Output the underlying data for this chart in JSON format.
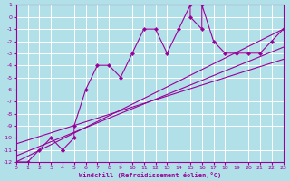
{
  "xlabel": "Windchill (Refroidissement éolien,°C)",
  "bg_color": "#b2e0e8",
  "grid_color": "#ffffff",
  "line_color": "#990099",
  "xlim": [
    0,
    23
  ],
  "ylim": [
    -12,
    1
  ],
  "xticks": [
    0,
    1,
    2,
    3,
    4,
    5,
    6,
    7,
    8,
    9,
    10,
    11,
    12,
    13,
    14,
    15,
    16,
    17,
    18,
    19,
    20,
    21,
    22,
    23
  ],
  "yticks": [
    1,
    0,
    -1,
    -2,
    -3,
    -4,
    -5,
    -6,
    -7,
    -8,
    -9,
    -10,
    -11,
    -12
  ],
  "curve_x": [
    0,
    1,
    2,
    3,
    4,
    4,
    5,
    5,
    6,
    7,
    8,
    9,
    10,
    11,
    12,
    13,
    14,
    15,
    15,
    16,
    16,
    17,
    18,
    19,
    20,
    21,
    22,
    23
  ],
  "curve_y": [
    -12,
    -12,
    -11,
    -10,
    -11,
    -11,
    -10,
    -9,
    -6,
    -4,
    -4,
    -5,
    -3,
    -1,
    -1,
    -3,
    -1,
    1,
    0,
    -1,
    1,
    -2,
    -3,
    -3,
    -3,
    -3,
    -2,
    -1
  ],
  "line1_x": [
    0,
    23
  ],
  "line1_y": [
    -12,
    -1
  ],
  "line2_x": [
    0,
    23
  ],
  "line2_y": [
    -11.5,
    -2.5
  ],
  "line3_x": [
    0,
    23
  ],
  "line3_y": [
    -10.5,
    -3.5
  ]
}
